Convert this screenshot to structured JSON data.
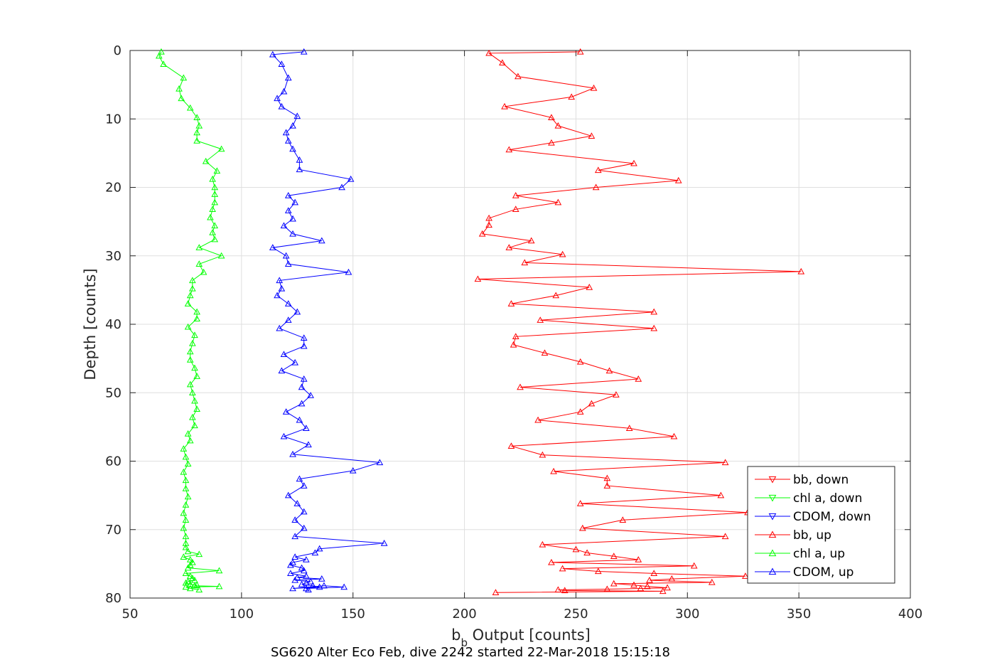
{
  "chart_data": {
    "type": "line",
    "title": "",
    "caption": "SG620 Alter Eco Feb, dive 2242 started 22-Mar-2018 15:15:18",
    "xlabel_main": "b",
    "xlabel_sub": "b",
    "xlabel_rest": " Output [counts]",
    "ylabel": "Depth [counts]",
    "xlim": [
      50,
      400
    ],
    "ylim": [
      0,
      80
    ],
    "y_reversed": true,
    "grid": true,
    "xticks": [
      "50",
      "100",
      "150",
      "200",
      "250",
      "300",
      "350",
      "400"
    ],
    "yticks": [
      "0",
      "10",
      "20",
      "30",
      "40",
      "50",
      "60",
      "70",
      "80"
    ],
    "legend_position": "bottom-right",
    "legend": [
      "bb, down",
      "chl a, down",
      "CDOM, down",
      "bb, up",
      "chl a, up",
      "CDOM, up"
    ],
    "colors": {
      "red": "#ff0000",
      "green": "#00ff00",
      "blue": "#0000ff"
    },
    "series": [
      {
        "name": "bb, down",
        "color": "#ff0000",
        "marker": "triangle-down",
        "x": [],
        "y": []
      },
      {
        "name": "chl a, down",
        "color": "#00ff00",
        "marker": "triangle-down",
        "x": [],
        "y": []
      },
      {
        "name": "CDOM, down",
        "color": "#0000ff",
        "marker": "triangle-down",
        "x": [],
        "y": []
      },
      {
        "name": "bb, up",
        "color": "#ff0000",
        "marker": "triangle-up",
        "x": [
          252,
          211,
          217,
          224,
          258,
          248,
          218,
          239,
          242,
          257,
          239,
          220,
          276,
          260,
          296,
          259,
          223,
          242,
          223,
          211,
          211,
          208,
          230,
          220,
          244,
          227,
          351,
          206,
          256,
          241,
          221,
          285,
          234,
          285,
          223,
          222,
          236,
          252,
          265,
          278,
          225,
          268,
          257,
          252,
          233,
          274,
          294,
          221,
          235,
          317,
          240,
          264,
          264,
          315,
          252,
          327,
          271,
          253,
          317,
          235,
          250,
          255,
          267,
          278,
          239,
          303,
          244,
          260,
          285,
          326,
          293,
          283,
          311,
          267,
          276,
          282,
          291,
          279,
          264,
          242,
          245,
          289,
          214
        ],
        "y": [
          0.2,
          0.4,
          1.8,
          3.8,
          5.5,
          6.8,
          8.2,
          9.8,
          11,
          12.5,
          13.5,
          14.5,
          16.5,
          17.5,
          19,
          20,
          21.2,
          22.2,
          23.2,
          24.5,
          25.5,
          26.8,
          27.8,
          28.8,
          29.8,
          31,
          32.3,
          33.4,
          34.6,
          35.8,
          37,
          38.2,
          39.4,
          40.6,
          41.8,
          43,
          44.2,
          45.5,
          46.8,
          48,
          49.2,
          50.3,
          51.6,
          52.8,
          54,
          55.2,
          56.4,
          57.8,
          59.1,
          60.2,
          61.5,
          62.5,
          63.6,
          65,
          66.2,
          67.5,
          68.6,
          69.8,
          71,
          72.2,
          72.9,
          73.4,
          73.9,
          74.4,
          74.8,
          75.3,
          75.7,
          76.1,
          76.4,
          76.8,
          77.2,
          77.4,
          77.7,
          77.9,
          78.1,
          78.3,
          78.5,
          78.6,
          78.7,
          78.8,
          78.9,
          79,
          79.2
        ]
      },
      {
        "name": "chl a, up",
        "color": "#00ff00",
        "marker": "triangle-up",
        "x": [
          64,
          63,
          65,
          74,
          72,
          73,
          77,
          80,
          81,
          80,
          80,
          91,
          84,
          89,
          87,
          88,
          88,
          88,
          87,
          86,
          88,
          87,
          88,
          81,
          91,
          81,
          83,
          78,
          78,
          77,
          76,
          80,
          80,
          76,
          79,
          78,
          77,
          77,
          79,
          80,
          77,
          78,
          79,
          80,
          78,
          79,
          76,
          77,
          74,
          75,
          76,
          74,
          75,
          75,
          76,
          75,
          74,
          75,
          74,
          75,
          75,
          75,
          76,
          81,
          74,
          77,
          78,
          77,
          76,
          90,
          75,
          77,
          78,
          79,
          76,
          75,
          77,
          80,
          79,
          90,
          75,
          77,
          81
        ],
        "y": [
          0.2,
          0.8,
          2,
          4,
          5.6,
          7,
          8.4,
          9.8,
          11,
          12,
          13.2,
          14.4,
          16.2,
          17.6,
          18.8,
          20,
          21,
          22.2,
          23.2,
          24.4,
          25.6,
          26.6,
          27.6,
          28.8,
          30,
          31.2,
          32.4,
          33.6,
          34.8,
          35.8,
          37,
          38.2,
          39.2,
          40.4,
          41.6,
          42.8,
          44,
          45.2,
          46.4,
          47.6,
          48.8,
          50,
          51.2,
          52.4,
          53.6,
          54.8,
          56,
          57,
          58.2,
          59.4,
          60.4,
          61.6,
          62.8,
          64,
          65.2,
          66.4,
          67.6,
          68.6,
          69.8,
          71,
          72,
          72.6,
          73.2,
          73.6,
          74,
          74.4,
          74.8,
          75.2,
          75.6,
          76,
          76.4,
          76.8,
          77.1,
          77.4,
          77.6,
          77.8,
          78,
          78.1,
          78.2,
          78.3,
          78.4,
          78.6,
          78.8
        ]
      },
      {
        "name": "CDOM, up",
        "color": "#0000ff",
        "marker": "triangle-up",
        "x": [
          128,
          114,
          118,
          121,
          119,
          116,
          118,
          125,
          123,
          120,
          121,
          123,
          126,
          126,
          149,
          145,
          121,
          124,
          121,
          123,
          119,
          123,
          136,
          114,
          120,
          121,
          148,
          117,
          118,
          116,
          121,
          125,
          121,
          117,
          128,
          128,
          119,
          124,
          118,
          128,
          127,
          131,
          127,
          120,
          126,
          129,
          119,
          130,
          123,
          162,
          150,
          126,
          128,
          121,
          125,
          128,
          124,
          128,
          124,
          164,
          135,
          133,
          124,
          129,
          123,
          122,
          127,
          128,
          122,
          129,
          125,
          136,
          124,
          131,
          129,
          127,
          132,
          135,
          123,
          137,
          146,
          129,
          130
        ],
        "y": [
          0.2,
          0.6,
          2,
          4,
          6,
          7,
          8.2,
          9.6,
          11,
          12,
          13.2,
          14.4,
          16,
          17.4,
          18.8,
          20,
          21.2,
          22.2,
          23.4,
          24.6,
          25.6,
          26.8,
          27.8,
          28.8,
          30,
          31.2,
          32.4,
          33.6,
          34.8,
          35.8,
          37,
          38.2,
          39.4,
          40.6,
          42,
          43.2,
          44.4,
          45.6,
          46.8,
          48,
          49.2,
          50.4,
          51.6,
          52.8,
          54,
          55.2,
          56.4,
          57.6,
          59,
          60.2,
          61.4,
          62.6,
          63.6,
          65,
          66.2,
          67.4,
          68.6,
          69.8,
          71,
          72,
          72.8,
          73.4,
          74,
          74.4,
          74.8,
          75.2,
          75.6,
          76,
          76.4,
          76.8,
          77,
          77.2,
          77.4,
          77.6,
          77.8,
          78,
          78.2,
          78.4,
          78.6,
          78.2,
          78.4,
          78.6,
          78.8
        ]
      }
    ]
  }
}
